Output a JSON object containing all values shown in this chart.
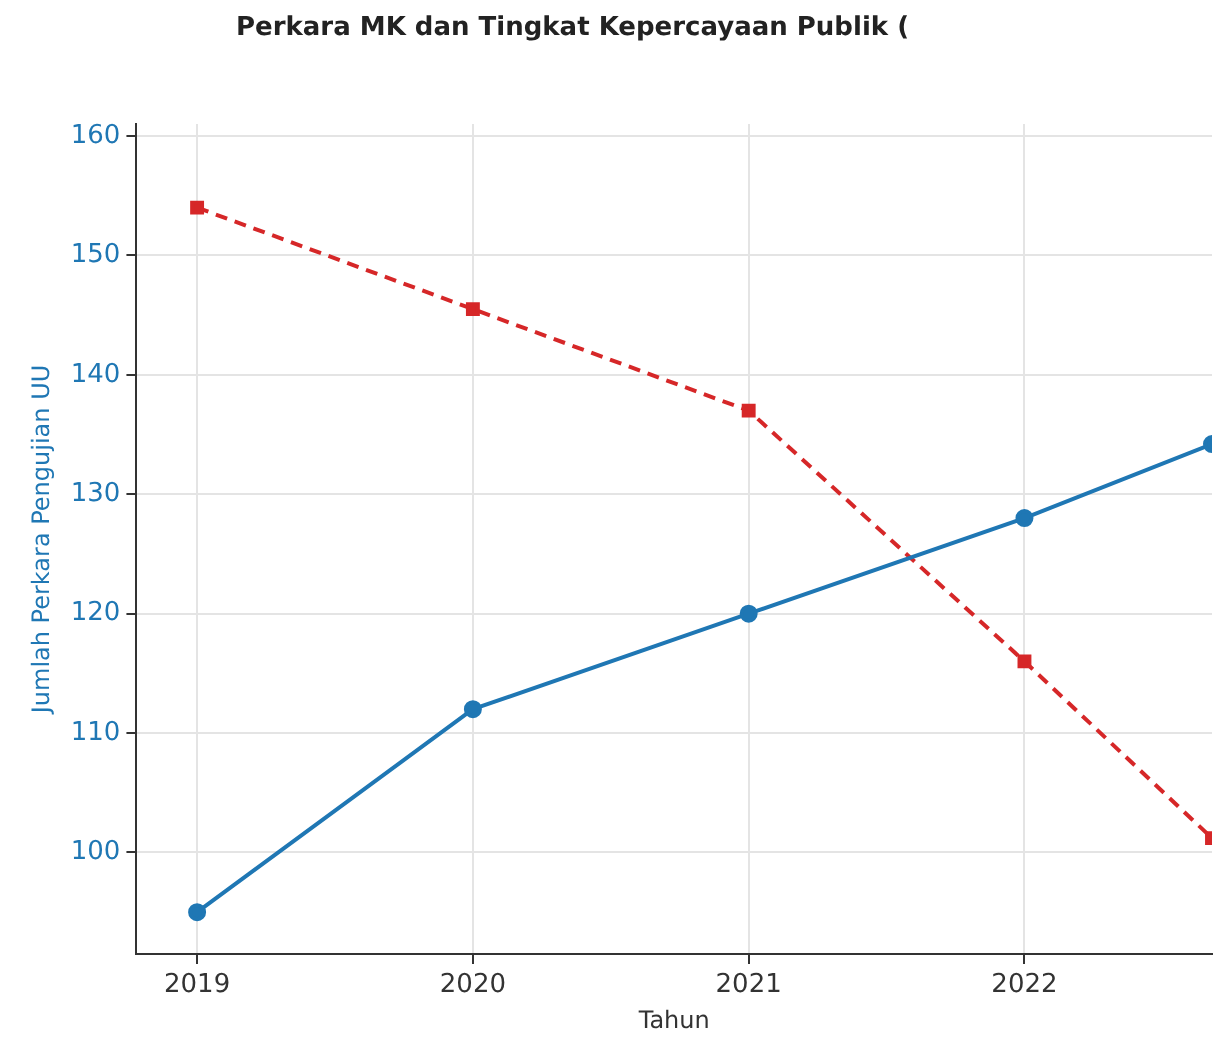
{
  "chart_data": {
    "type": "line",
    "title": "Perkara MK dan Tingkat Kepercayaan Publik (",
    "xlabel": "Tahun",
    "ylabel": "Jumlah Perkara Pengujian UU",
    "x": [
      2019,
      2020,
      2021,
      2022,
      2022.68
    ],
    "series": [
      {
        "color": "#1f77b4",
        "values": [
          95,
          112,
          120,
          128,
          134.2
        ],
        "marker": "circle",
        "line_style": "solid"
      },
      {
        "color": "#d62728",
        "values": [
          154,
          145.5,
          137,
          116,
          101.2
        ],
        "marker": "square",
        "line_style": "dashed"
      }
    ],
    "xlim": [
      2018.78,
      2022.68
    ],
    "xticks": [
      2019,
      2020,
      2021,
      2022
    ],
    "ylim": [
      91.5,
      161
    ],
    "yticks": [
      100,
      110,
      120,
      130,
      140,
      150,
      160
    ],
    "grid": true,
    "legend": false
  }
}
